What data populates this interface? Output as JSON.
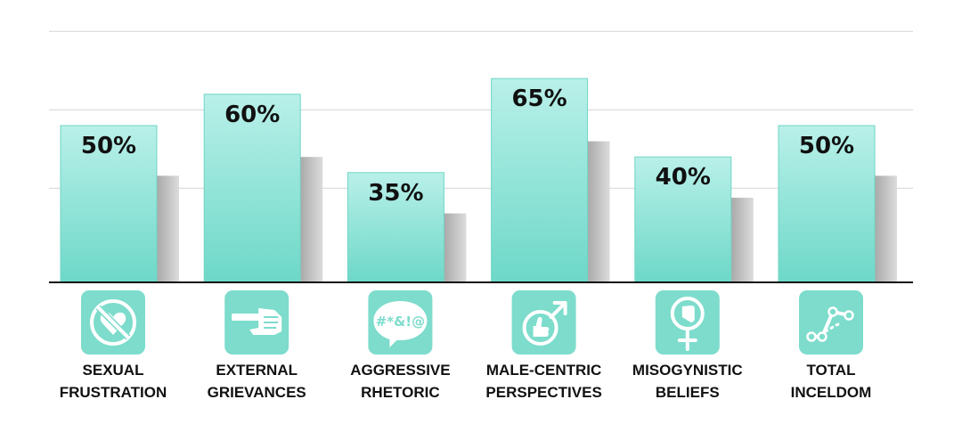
{
  "chart_data": {
    "type": "bar",
    "categories": [
      [
        "SEXUAL",
        "FRUSTRATION"
      ],
      [
        "EXTERNAL",
        "GRIEVANCES"
      ],
      [
        "AGGRESSIVE",
        "RHETORIC"
      ],
      [
        "MALE-CENTRIC",
        "PERSPECTIVES"
      ],
      [
        "MISOGYNISTIC",
        "BELIEFS"
      ],
      [
        "TOTAL",
        "INCELDOM"
      ]
    ],
    "series": [
      {
        "values": [
          50,
          60,
          35,
          65,
          40,
          50
        ],
        "labels": [
          "50%",
          "60%",
          "35%",
          "65%",
          "40%",
          "50%"
        ],
        "color": "#7ddccc"
      },
      {
        "values": [
          34,
          40,
          22,
          45,
          27,
          34
        ],
        "color": "#c9c9c9"
      }
    ],
    "ylim": [
      0,
      100
    ],
    "grid": true,
    "icons": [
      "no-heart-icon",
      "pointing-hand-icon",
      "swearing-speech-bubble-icon",
      "male-symbol-thumbs-up-icon",
      "female-symbol-thumbs-down-icon",
      "scatter-line-icon"
    ],
    "colors": {
      "primary_bar": "#7ddccc",
      "secondary_bar": "#c9c9c9",
      "icon_tile": "#7ddccc",
      "axis": "#111111",
      "grid": "#dddddd"
    }
  }
}
